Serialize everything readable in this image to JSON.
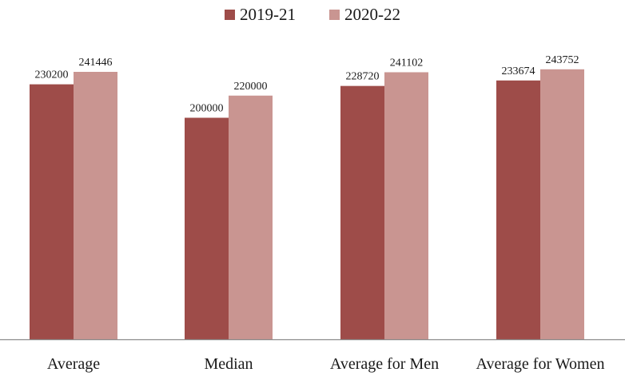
{
  "chart_data": {
    "type": "bar",
    "categories": [
      "Average",
      "Median",
      "Average for Men",
      "Average for Women"
    ],
    "series": [
      {
        "name": "2019-21",
        "values": [
          230200,
          200000,
          228720,
          233674
        ]
      },
      {
        "name": "2020-22",
        "values": [
          241446,
          220000,
          241102,
          243752
        ]
      }
    ],
    "data_labels": [
      [
        "230200",
        "200000",
        "228720",
        "233674"
      ],
      [
        "241446",
        "220000",
        "241102",
        "243752"
      ]
    ],
    "title": "",
    "xlabel": "",
    "ylabel": "",
    "ylim": [
      0,
      270000
    ],
    "legend_position": "top-center",
    "grid": false,
    "colors": [
      "#9e4c49",
      "#c99591"
    ]
  }
}
